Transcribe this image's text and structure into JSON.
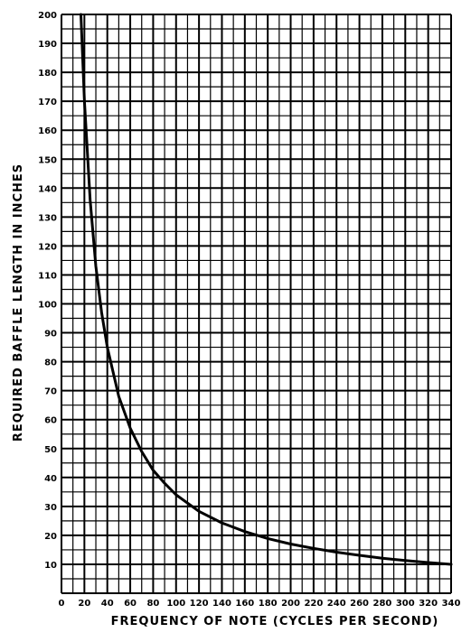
{
  "chart_data": {
    "type": "line",
    "xlabel": "FREQUENCY OF NOTE (CYCLES PER SECOND)",
    "ylabel": "REQUIRED BAFFLE LENGTH IN INCHES",
    "xlim": [
      0,
      340
    ],
    "ylim": [
      0,
      200
    ],
    "x_ticks": [
      0,
      20,
      40,
      60,
      80,
      100,
      120,
      140,
      160,
      180,
      200,
      220,
      240,
      260,
      280,
      300,
      320,
      340
    ],
    "y_ticks": [
      10,
      20,
      30,
      40,
      50,
      60,
      70,
      80,
      90,
      100,
      110,
      120,
      130,
      140,
      150,
      160,
      170,
      180,
      190,
      200
    ],
    "x_minor_step": 10,
    "y_minor_step": 5,
    "grid": true,
    "series": [
      {
        "x": [
          17,
          20,
          25,
          30,
          35,
          40,
          50,
          60,
          70,
          80,
          90,
          100,
          120,
          140,
          160,
          180,
          200,
          220,
          240,
          260,
          280,
          300,
          320,
          340
        ],
        "values": [
          200,
          170,
          136,
          113,
          97,
          85,
          68,
          57,
          49,
          42.5,
          38,
          34,
          28.3,
          24.3,
          21.3,
          18.9,
          17,
          15.5,
          14.2,
          13.1,
          12.1,
          11.3,
          10.6,
          10
        ]
      }
    ]
  }
}
